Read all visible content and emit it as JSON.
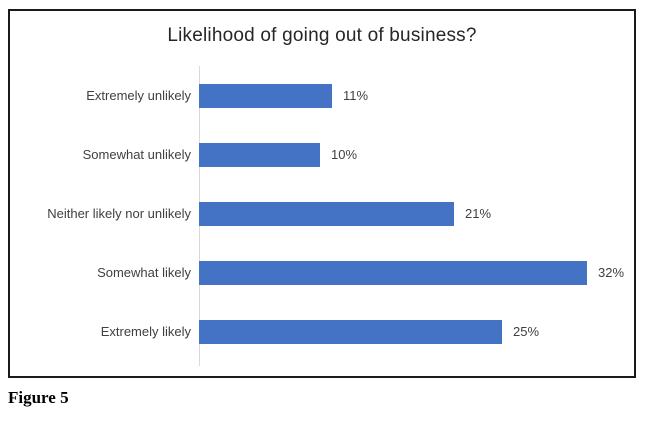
{
  "caption": "Figure 5",
  "chart_data": {
    "type": "bar",
    "orientation": "horizontal",
    "title": "Likelihood of going out of business?",
    "categories": [
      "Extremely unlikely",
      "Somewhat unlikely",
      "Neither likely nor unlikely",
      "Somewhat likely",
      "Extremely likely"
    ],
    "values": [
      11,
      10,
      21,
      32,
      25
    ],
    "value_labels": [
      "11%",
      "10%",
      "21%",
      "32%",
      "25%"
    ],
    "xlim": [
      0,
      32
    ],
    "grid": false,
    "legend": false,
    "bar_color": "#4472c4",
    "axis_line_color": "#d9d9d9"
  }
}
